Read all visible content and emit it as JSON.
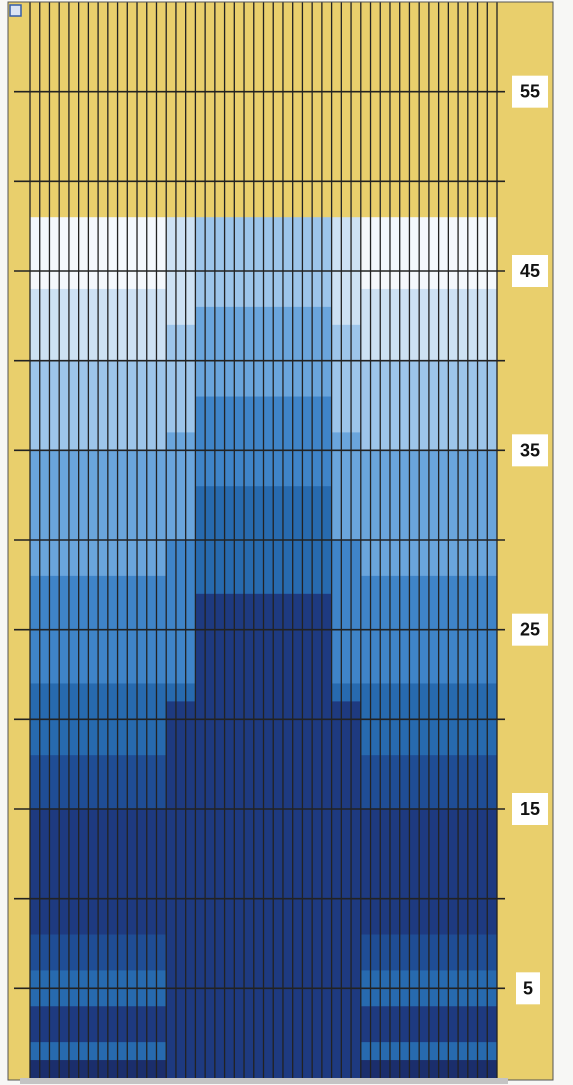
{
  "colors": {
    "panel_background": "#e9cf6c",
    "grid_line": "#222222",
    "level_ramp_light_to_dark": [
      "#f4f8fc",
      "#cde1f3",
      "#9dc5ea",
      "#6aa5dc",
      "#3f84c8",
      "#276aaf",
      "#1f4d95",
      "#1e3a80",
      "#1b2e6c"
    ]
  },
  "diagram": {
    "grid": {
      "columns": 48,
      "value_max": 60,
      "value_min": 0
    },
    "scale_labels": [
      {
        "value": 55,
        "text": "55"
      },
      {
        "value": 45,
        "text": "45"
      },
      {
        "value": 35,
        "text": "35"
      },
      {
        "value": 25,
        "text": "25"
      },
      {
        "value": 15,
        "text": "15"
      },
      {
        "value": 5,
        "text": "5"
      }
    ],
    "fill_top_value": 48,
    "column_groups": [
      {
        "name": "outer-left",
        "columns": 14,
        "column_top_value": 48,
        "shade_bands": [
          {
            "from": 48,
            "to": 44,
            "level": 0
          },
          {
            "from": 44,
            "to": 40,
            "level": 1
          },
          {
            "from": 40,
            "to": 35,
            "level": 2
          },
          {
            "from": 35,
            "to": 28,
            "level": 3
          },
          {
            "from": 28,
            "to": 22,
            "level": 4
          },
          {
            "from": 22,
            "to": 18,
            "level": 5
          },
          {
            "from": 18,
            "to": 15,
            "level": 6
          },
          {
            "from": 15,
            "to": 8,
            "level": 7
          },
          {
            "from": 8,
            "to": 6,
            "level": 6
          },
          {
            "from": 6,
            "to": 4,
            "level": 5
          },
          {
            "from": 4,
            "to": 2,
            "level": 7
          },
          {
            "from": 2,
            "to": 1,
            "level": 5
          },
          {
            "from": 1,
            "to": 0,
            "level": 8
          }
        ]
      },
      {
        "name": "step-left",
        "columns": 3,
        "column_top_value": 48,
        "shade_bands": [
          {
            "from": 48,
            "to": 42,
            "level": 1
          },
          {
            "from": 42,
            "to": 36,
            "level": 2
          },
          {
            "from": 36,
            "to": 30,
            "level": 3
          },
          {
            "from": 30,
            "to": 22,
            "level": 4
          },
          {
            "from": 22,
            "to": 21,
            "level": 5
          },
          {
            "from": 21,
            "to": 0,
            "level": 7
          }
        ]
      },
      {
        "name": "center",
        "columns": 14,
        "column_top_value": 48,
        "shade_bands": [
          {
            "from": 48,
            "to": 43,
            "level": 2
          },
          {
            "from": 43,
            "to": 38,
            "level": 3
          },
          {
            "from": 38,
            "to": 33,
            "level": 4
          },
          {
            "from": 33,
            "to": 27,
            "level": 5
          },
          {
            "from": 27,
            "to": 0,
            "level": 7
          }
        ]
      },
      {
        "name": "step-right",
        "columns": 3,
        "column_top_value": 48,
        "shade_bands": [
          {
            "from": 48,
            "to": 42,
            "level": 1
          },
          {
            "from": 42,
            "to": 36,
            "level": 2
          },
          {
            "from": 36,
            "to": 30,
            "level": 3
          },
          {
            "from": 30,
            "to": 22,
            "level": 4
          },
          {
            "from": 22,
            "to": 21,
            "level": 5
          },
          {
            "from": 21,
            "to": 0,
            "level": 7
          }
        ]
      },
      {
        "name": "outer-right",
        "columns": 14,
        "column_top_value": 48,
        "shade_bands": [
          {
            "from": 48,
            "to": 44,
            "level": 0
          },
          {
            "from": 44,
            "to": 40,
            "level": 1
          },
          {
            "from": 40,
            "to": 35,
            "level": 2
          },
          {
            "from": 35,
            "to": 28,
            "level": 3
          },
          {
            "from": 28,
            "to": 22,
            "level": 4
          },
          {
            "from": 22,
            "to": 18,
            "level": 5
          },
          {
            "from": 18,
            "to": 15,
            "level": 6
          },
          {
            "from": 15,
            "to": 8,
            "level": 7
          },
          {
            "from": 8,
            "to": 6,
            "level": 6
          },
          {
            "from": 6,
            "to": 4,
            "level": 5
          },
          {
            "from": 4,
            "to": 2,
            "level": 7
          },
          {
            "from": 2,
            "to": 1,
            "level": 5
          },
          {
            "from": 1,
            "to": 0,
            "level": 8
          }
        ]
      }
    ]
  }
}
